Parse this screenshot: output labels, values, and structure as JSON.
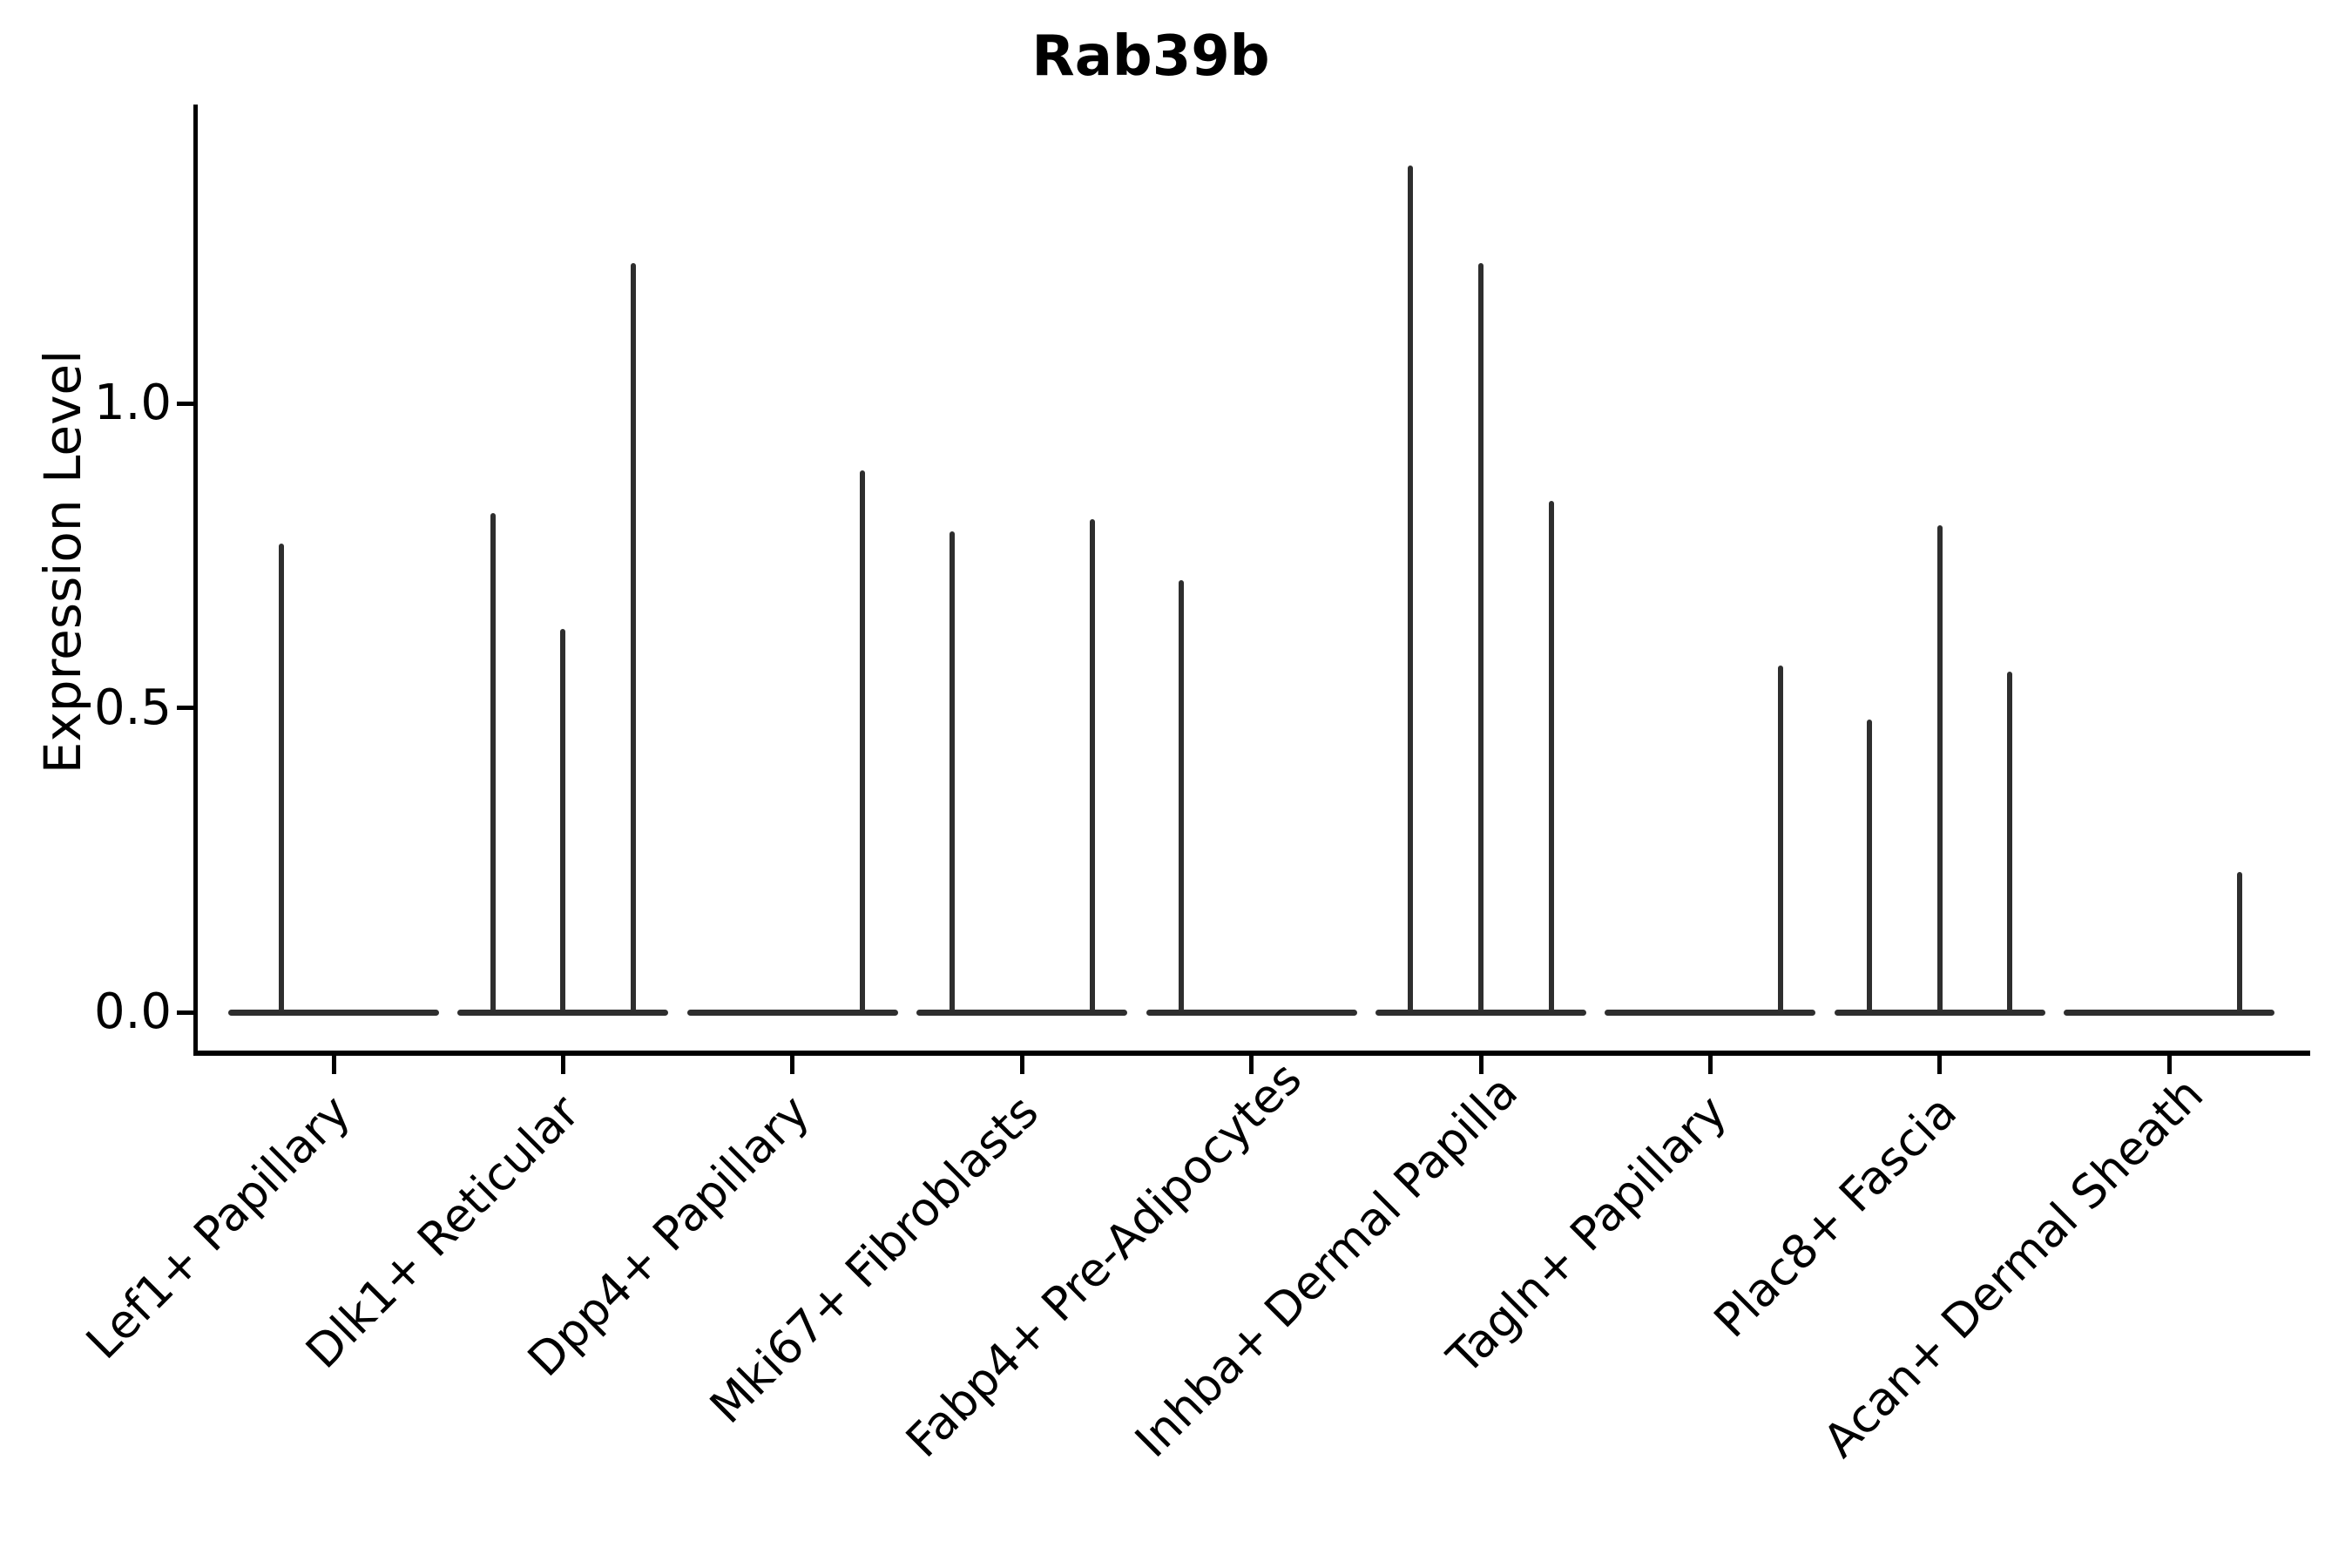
{
  "chart_data": {
    "type": "violin",
    "title": "Rab39b",
    "ylabel": "Expression Level",
    "xlabel": "",
    "yticks": [
      0.0,
      0.5,
      1.0
    ],
    "ytick_labels": [
      "0.0",
      "0.5",
      "1.0"
    ],
    "ylim": [
      -0.07,
      1.49
    ],
    "grid": false,
    "legend_position": "none",
    "violin_color": "#2e2e2e",
    "axis_color": "#000000",
    "background_color": "#ffffff",
    "description": "Violin plot of Rab39b expression; most cells are at 0 (flat violin bases) with thin density tails (spikes) rising to the maximum expression per sub-violin.",
    "categories": [
      {
        "label": "Lef1+ Papillary",
        "sub_violins": 2,
        "spikes": [
          {
            "slot": 1,
            "max_expression": 0.77
          }
        ]
      },
      {
        "label": "Dlk1+ Reticular",
        "sub_violins": 3,
        "spikes": [
          {
            "slot": 1,
            "max_expression": 0.82
          },
          {
            "slot": 2,
            "max_expression": 0.63
          },
          {
            "slot": 3,
            "max_expression": 1.23
          }
        ]
      },
      {
        "label": "Dpp4+ Papillary",
        "sub_violins": 3,
        "spikes": [
          {
            "slot": 3,
            "max_expression": 0.89
          }
        ]
      },
      {
        "label": "Mki67+ Fibroblasts",
        "sub_violins": 3,
        "spikes": [
          {
            "slot": 1,
            "max_expression": 0.79
          },
          {
            "slot": 3,
            "max_expression": 0.81
          }
        ]
      },
      {
        "label": "Fabp4+ Pre-Adipocytes",
        "sub_violins": 3,
        "spikes": [
          {
            "slot": 1,
            "max_expression": 0.71
          }
        ]
      },
      {
        "label": "Inhba+ Dermal Papilla",
        "sub_violins": 3,
        "spikes": [
          {
            "slot": 1,
            "max_expression": 1.39
          },
          {
            "slot": 2,
            "max_expression": 1.23
          },
          {
            "slot": 3,
            "max_expression": 0.84
          }
        ]
      },
      {
        "label": "Tagln+ Papillary",
        "sub_violins": 3,
        "spikes": [
          {
            "slot": 3,
            "max_expression": 0.57
          }
        ]
      },
      {
        "label": "Plac8+ Fascia",
        "sub_violins": 3,
        "spikes": [
          {
            "slot": 1,
            "max_expression": 0.48
          },
          {
            "slot": 2,
            "max_expression": 0.8
          },
          {
            "slot": 3,
            "max_expression": 0.56
          }
        ]
      },
      {
        "label": "Acan+ Dermal Sheath",
        "sub_violins": 3,
        "spikes": [
          {
            "slot": 3,
            "max_expression": 0.23
          }
        ]
      }
    ]
  }
}
